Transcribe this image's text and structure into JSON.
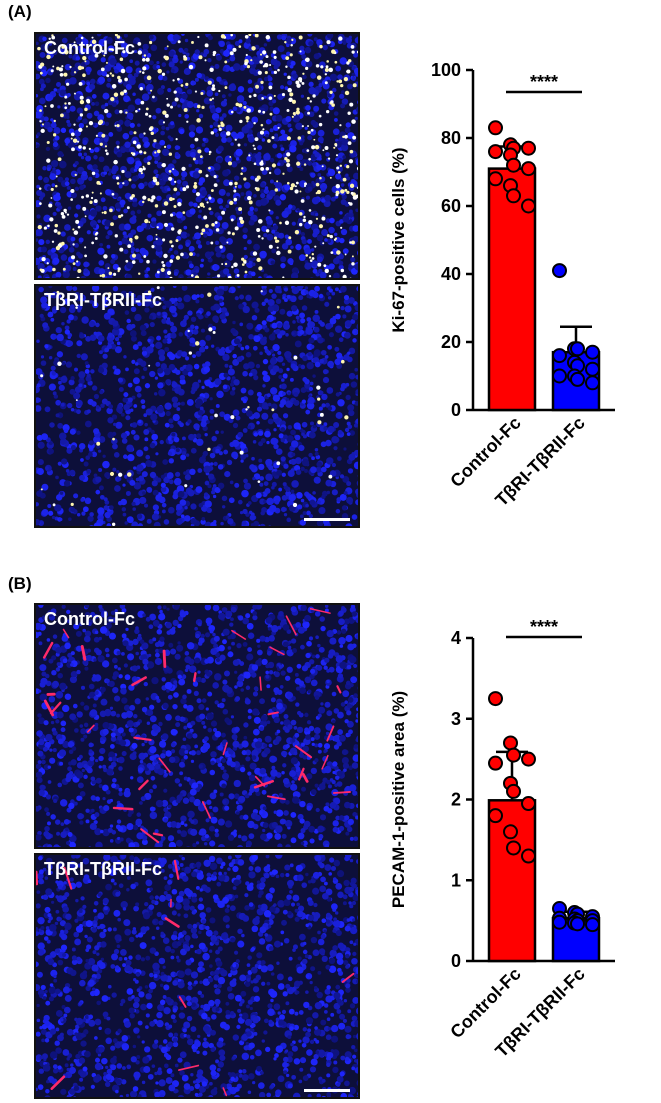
{
  "panels": [
    {
      "label": "(A)",
      "images": [
        {
          "label": "Control-Fc",
          "stain": "ki67"
        },
        {
          "label": "TβRI-TβRII-Fc",
          "stain": "ki67-low"
        }
      ],
      "chart_data": {
        "type": "bar",
        "categories": [
          "Control-Fc",
          "TβRI-TβRII-Fc"
        ],
        "ylabel": "Ki-67-positive cells (%)",
        "ylim": [
          0,
          100
        ],
        "yticks": [
          "0",
          "20",
          "40",
          "60",
          "80",
          "100"
        ],
        "series": [
          {
            "values": [
              71,
              17
            ],
            "error": [
              6.5,
              7.5
            ]
          }
        ],
        "points": [
          [
            83,
            78,
            77,
            77,
            76,
            75,
            72,
            71,
            68,
            66,
            63,
            60
          ],
          [
            41,
            18,
            18,
            17,
            16,
            14,
            13,
            12,
            10,
            10,
            9,
            8
          ]
        ],
        "colors": [
          "#ff0000",
          "#0000ff"
        ],
        "significance": "****"
      }
    },
    {
      "label": "(B)",
      "images": [
        {
          "label": "Control-Fc",
          "stain": "pecam"
        },
        {
          "label": "TβRI-TβRII-Fc",
          "stain": "pecam-low"
        }
      ],
      "chart_data": {
        "type": "bar",
        "categories": [
          "Control-Fc",
          "TβRI-TβRII-Fc"
        ],
        "ylabel": "PECAM-1-positive area (%)",
        "ylim": [
          0,
          4
        ],
        "yticks": [
          "0",
          "1",
          "2",
          "3",
          "4"
        ],
        "series": [
          {
            "values": [
              1.99,
              0.53
            ],
            "error": [
              0.6,
              0.08
            ]
          }
        ],
        "points": [
          [
            3.25,
            2.7,
            2.55,
            2.5,
            2.45,
            2.2,
            2.1,
            1.95,
            1.8,
            1.6,
            1.4,
            1.3
          ],
          [
            0.65,
            0.6,
            0.58,
            0.55,
            0.53,
            0.52,
            0.5,
            0.5,
            0.48,
            0.47,
            0.46,
            0.45
          ]
        ],
        "colors": [
          "#ff0000",
          "#0000ff"
        ],
        "significance": "****"
      }
    }
  ]
}
